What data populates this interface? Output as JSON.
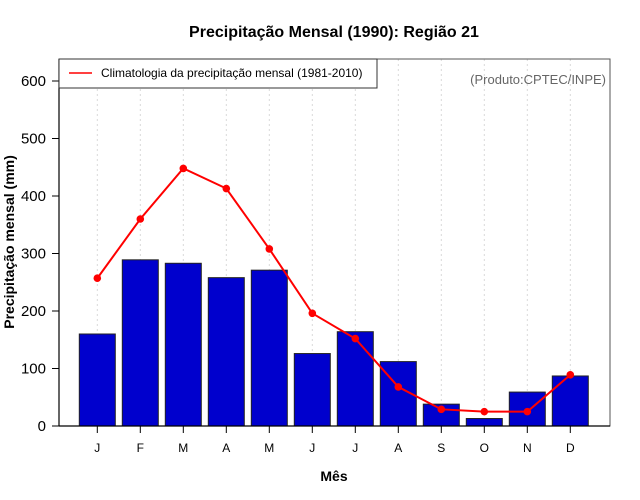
{
  "chart_data": {
    "type": "bar",
    "title": "Precipitação Mensal (1990): Região 21",
    "xlabel": "Mês",
    "ylabel": "Precipitação mensal (mm)",
    "categories": [
      "J",
      "F",
      "M",
      "A",
      "M",
      "J",
      "J",
      "A",
      "S",
      "O",
      "N",
      "D"
    ],
    "ylim": [
      0,
      600
    ],
    "yticks": [
      0,
      100,
      200,
      300,
      400,
      500,
      600
    ],
    "grid": "vertical dotted at each month",
    "series": [
      {
        "name": "Precipitação mensal 1990",
        "type": "bar",
        "color": "#0000CD",
        "values": [
          160,
          289,
          283,
          258,
          271,
          126,
          164,
          112,
          38,
          13,
          59,
          87
        ]
      },
      {
        "name": "Climatologia da precipitação mensal (1981-2010)",
        "type": "line",
        "color": "#FF0000",
        "values": [
          257,
          360,
          448,
          413,
          308,
          196,
          152,
          68,
          29,
          25,
          25,
          89
        ]
      }
    ],
    "legend": {
      "placement": "top-left",
      "entries": [
        "Climatologia da precipitação mensal (1981-2010)"
      ]
    },
    "annotation": "(Produto:CPTEC/INPE)"
  }
}
